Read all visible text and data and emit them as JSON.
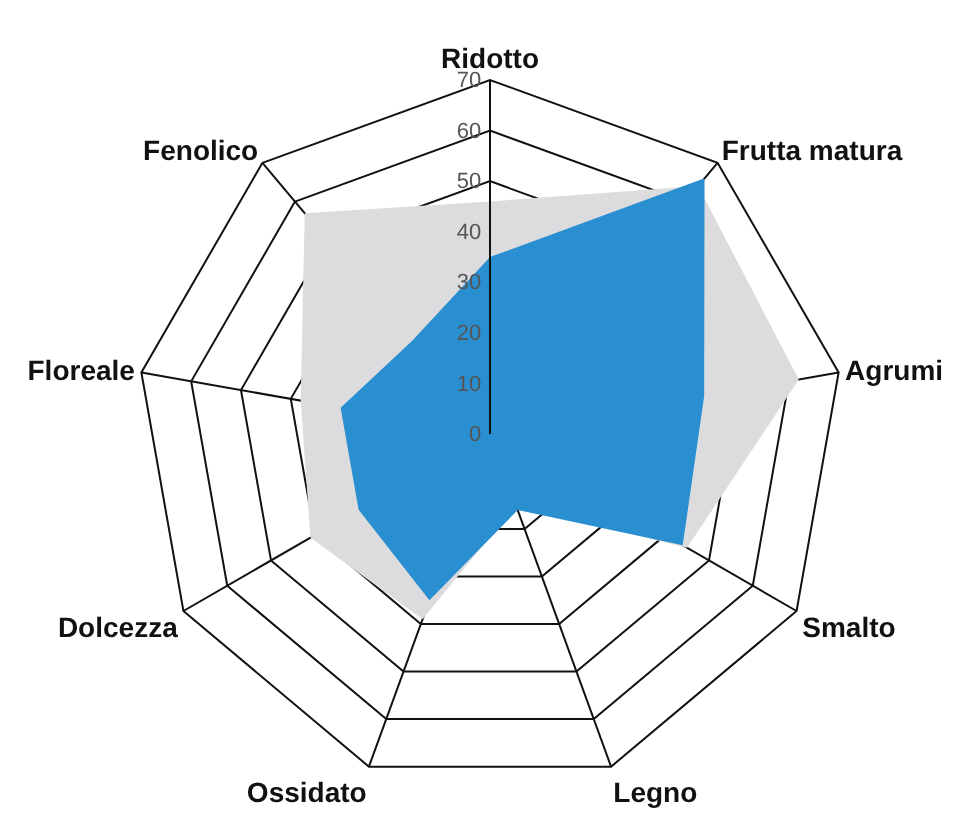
{
  "chart_data": {
    "type": "radar",
    "categories": [
      "Ridotto",
      "Frutta matura",
      "Agrumi",
      "Smalto",
      "Legno",
      "Ossidato",
      "Dolcezza",
      "Floreale",
      "Fenolico"
    ],
    "series": [
      {
        "color": "#dcdcde",
        "values": [
          46,
          64,
          62,
          45,
          15,
          39,
          41,
          38,
          57
        ]
      },
      {
        "color": "#2a8fd0",
        "values": [
          35,
          66,
          43,
          44,
          16,
          35,
          30,
          30,
          24
        ]
      }
    ],
    "ylim": [
      0,
      70
    ],
    "yticks": [
      0,
      10,
      20,
      30,
      40,
      50,
      60,
      70
    ],
    "grid": true,
    "marker": "none"
  }
}
